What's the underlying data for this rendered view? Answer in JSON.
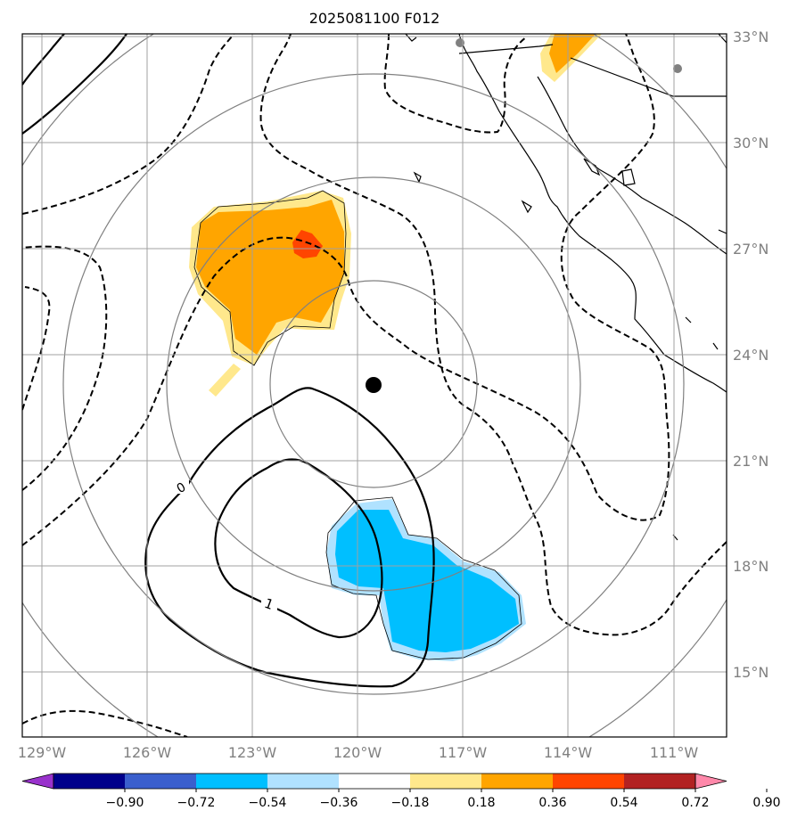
{
  "title": "2025081100 F012",
  "lon_ticks": [
    "129°W",
    "126°W",
    "123°W",
    "120°W",
    "117°W",
    "114°W",
    "111°W"
  ],
  "lat_ticks": [
    "33°N",
    "30°N",
    "27°N",
    "24°N",
    "21°N",
    "18°N",
    "15°N"
  ],
  "contour_labels": [
    "0",
    "1"
  ],
  "colorbar": {
    "tick_labels": [
      "−0.90",
      "−0.72",
      "−0.54",
      "−0.36",
      "−0.18",
      "0.18",
      "0.36",
      "0.54",
      "0.72",
      "0.90"
    ],
    "colors": [
      "#9932cc",
      "#00008b",
      "#3a5fcd",
      "#00bfff",
      "#b0e2ff",
      "#ffffff",
      "#ffe88c",
      "#ffa500",
      "#ff4500",
      "#b22222",
      "#ff88aa"
    ]
  },
  "storm_center": {
    "lon": -119.6,
    "lat": 23.1
  },
  "range_rings": {
    "units": "circles centered on storm",
    "count": 4
  }
}
